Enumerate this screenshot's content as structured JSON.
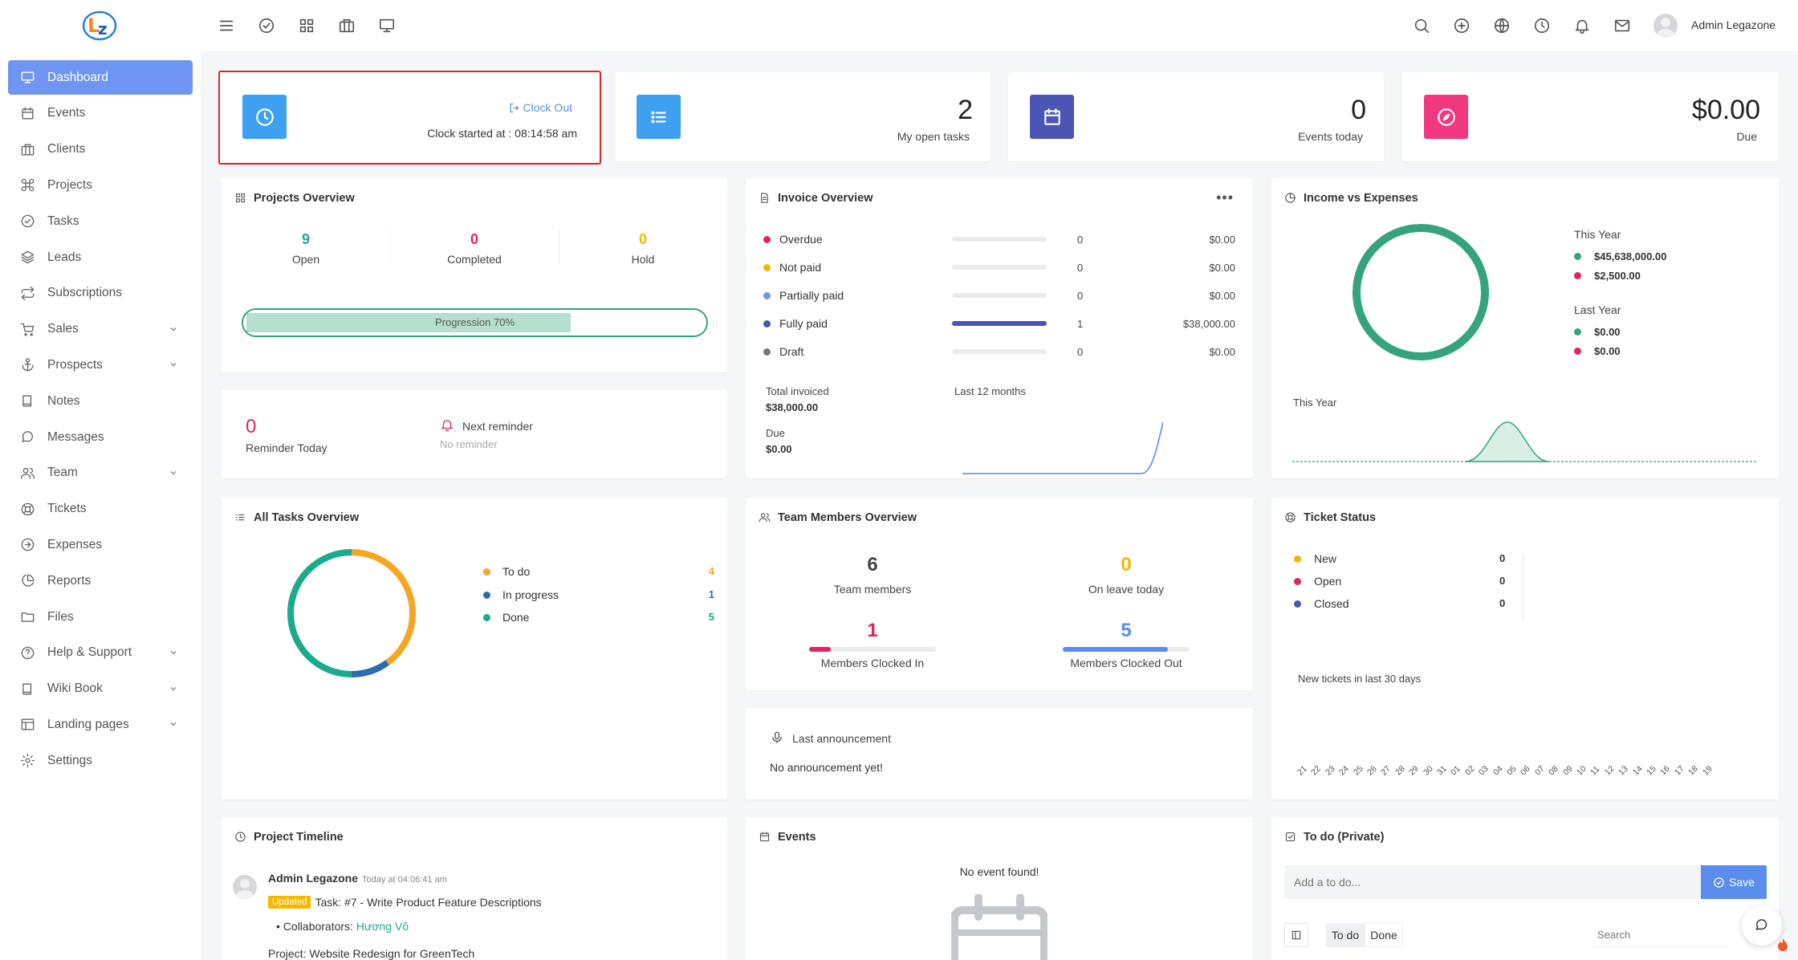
{
  "user": {
    "name": "Admin Legazone"
  },
  "sidebar": {
    "items": [
      {
        "label": "Dashboard",
        "icon": "monitor-icon",
        "active": true
      },
      {
        "label": "Events",
        "icon": "calendar-icon"
      },
      {
        "label": "Clients",
        "icon": "briefcase-icon"
      },
      {
        "label": "Projects",
        "icon": "command-icon"
      },
      {
        "label": "Tasks",
        "icon": "check-circle-icon"
      },
      {
        "label": "Leads",
        "icon": "layers-icon"
      },
      {
        "label": "Subscriptions",
        "icon": "repeat-icon"
      },
      {
        "label": "Sales",
        "icon": "cart-icon",
        "expandable": true
      },
      {
        "label": "Prospects",
        "icon": "anchor-icon",
        "expandable": true
      },
      {
        "label": "Notes",
        "icon": "book-icon"
      },
      {
        "label": "Messages",
        "icon": "message-icon"
      },
      {
        "label": "Team",
        "icon": "users-icon",
        "expandable": true
      },
      {
        "label": "Tickets",
        "icon": "lifebuoy-icon"
      },
      {
        "label": "Expenses",
        "icon": "arrow-right-circle-icon"
      },
      {
        "label": "Reports",
        "icon": "pie-chart-icon"
      },
      {
        "label": "Files",
        "icon": "folder-icon"
      },
      {
        "label": "Help & Support",
        "icon": "help-circle-icon",
        "expandable": true
      },
      {
        "label": "Wiki Book",
        "icon": "book-icon",
        "expandable": true
      },
      {
        "label": "Landing pages",
        "icon": "layout-icon",
        "expandable": true
      },
      {
        "label": "Settings",
        "icon": "settings-icon"
      }
    ]
  },
  "clock": {
    "clock_out_label": "Clock Out",
    "started_text": "Clock started at : 08:14:58 am"
  },
  "stats": {
    "open_tasks": {
      "value": "2",
      "label": "My open tasks"
    },
    "events_today": {
      "value": "0",
      "label": "Events today"
    },
    "due": {
      "value": "$0.00",
      "label": "Due"
    }
  },
  "projects_overview": {
    "title": "Projects Overview",
    "open": {
      "value": "9",
      "label": "Open"
    },
    "completed": {
      "value": "0",
      "label": "Completed"
    },
    "hold": {
      "value": "0",
      "label": "Hold"
    },
    "progression_label": "Progression 70%",
    "progression": 0.7
  },
  "reminder": {
    "count": "0",
    "label": "Reminder Today",
    "next_label": "Next reminder",
    "next_value": "No reminder"
  },
  "invoice_overview": {
    "title": "Invoice Overview",
    "rows": [
      {
        "label": "Overdue",
        "count": "0",
        "amount": "$0.00",
        "color": "#e0245e",
        "fill": 0
      },
      {
        "label": "Not paid",
        "count": "0",
        "amount": "$0.00",
        "color": "#f5b800",
        "fill": 0
      },
      {
        "label": "Partially paid",
        "count": "0",
        "amount": "$0.00",
        "color": "#6f95f2",
        "fill": 0
      },
      {
        "label": "Fully paid",
        "count": "1",
        "amount": "$38,000.00",
        "color": "#4a55b5",
        "fill": 1
      },
      {
        "label": "Draft",
        "count": "0",
        "amount": "$0.00",
        "color": "#777777",
        "fill": 0
      }
    ],
    "total_label": "Total invoiced",
    "total_value": "$38,000.00",
    "due_label": "Due",
    "due_value": "$0.00",
    "trend_label": "Last 12 months"
  },
  "income_expenses": {
    "title": "Income vs Expenses",
    "this_year_label": "This Year",
    "this_year_income": "$45,638,000.00",
    "this_year_expense": "$2,500.00",
    "last_year_label": "Last Year",
    "last_year_income": "$0.00",
    "last_year_expense": "$0.00",
    "chart_label": "This Year",
    "income_color": "#36a37f",
    "expense_color": "#e0245e"
  },
  "tasks_overview": {
    "title": "All Tasks Overview",
    "items": [
      {
        "label": "To do",
        "value": "4",
        "color": "#f5a623"
      },
      {
        "label": "In progress",
        "value": "1",
        "color": "#2b6cb0"
      },
      {
        "label": "Done",
        "value": "5",
        "color": "#1aaa8c"
      }
    ]
  },
  "team_overview": {
    "title": "Team Members Overview",
    "members": {
      "value": "6",
      "label": "Team members"
    },
    "on_leave": {
      "value": "0",
      "label": "On leave today"
    },
    "clocked_in": {
      "value": "1",
      "label": "Members Clocked In",
      "fraction": 0.17
    },
    "clocked_out": {
      "value": "5",
      "label": "Members Clocked Out",
      "fraction": 0.83
    }
  },
  "announcement": {
    "label": "Last announcement",
    "text": "No announcement yet!"
  },
  "ticket_status": {
    "title": "Ticket Status",
    "items": [
      {
        "label": "New",
        "value": "0",
        "color": "#f5b800"
      },
      {
        "label": "Open",
        "value": "0",
        "color": "#e0245e"
      },
      {
        "label": "Closed",
        "value": "0",
        "color": "#4a55b5"
      }
    ],
    "chart_label": "New tickets in last 30 days",
    "days": [
      "21",
      "22",
      "23",
      "24",
      "25",
      "26",
      "27",
      "28",
      "29",
      "30",
      "31",
      "01",
      "02",
      "03",
      "04",
      "05",
      "06",
      "07",
      "08",
      "09",
      "10",
      "11",
      "12",
      "13",
      "14",
      "15",
      "16",
      "17",
      "18",
      "19"
    ]
  },
  "timeline": {
    "title": "Project Timeline",
    "author": "Admin Legazone",
    "time": "Today at 04:06:41 am",
    "badge": "Updated",
    "task_text": "Task: #7 - Write Product Feature Descriptions",
    "collab_label": "Collaborators:",
    "collab_name": "Hương Võ",
    "project_text": "Project: Website Redesign for GreenTech"
  },
  "events_card": {
    "title": "Events",
    "empty_text": "No event found!"
  },
  "todo": {
    "title": "To do (Private)",
    "placeholder": "Add a to do...",
    "save_label": "Save",
    "tab_todo": "To do",
    "tab_done": "Done",
    "search_placeholder": "Search"
  }
}
